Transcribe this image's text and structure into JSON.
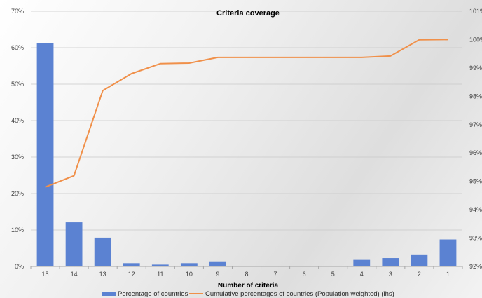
{
  "chart_data": {
    "type": "bar",
    "title": "Criteria coverage",
    "xlabel": "Number of criteria",
    "ylabel": "",
    "y2label": "",
    "categories": [
      "15",
      "14",
      "13",
      "12",
      "11",
      "10",
      "9",
      "8",
      "7",
      "6",
      "5",
      "4",
      "3",
      "2",
      "1"
    ],
    "ylim": [
      0,
      70
    ],
    "y2lim": [
      92,
      101
    ],
    "yticks": [
      "0%",
      "10%",
      "20%",
      "30%",
      "40%",
      "50%",
      "60%",
      "70%"
    ],
    "y2ticks": [
      "92%",
      "93%",
      "94%",
      "95%",
      "96%",
      "97%",
      "98%",
      "99%",
      "100%",
      "101%"
    ],
    "grid": true,
    "legend_position": "bottom",
    "series": [
      {
        "name": "Percentage of countries",
        "type": "bar",
        "axis": "left",
        "color": "#5b82d2",
        "values": [
          61.2,
          12.1,
          7.9,
          0.9,
          0.5,
          0.9,
          1.4,
          0,
          0,
          0,
          0,
          1.8,
          2.3,
          3.3,
          7.4
        ]
      },
      {
        "name": "Cumulative percentages of countries (Population weighted) (lhs)",
        "type": "line",
        "axis": "right",
        "color": "#f0904a",
        "values": [
          94.8,
          95.2,
          98.2,
          98.8,
          99.15,
          99.17,
          99.37,
          99.37,
          99.37,
          99.37,
          99.37,
          99.37,
          99.42,
          99.99,
          100.0
        ]
      }
    ]
  }
}
